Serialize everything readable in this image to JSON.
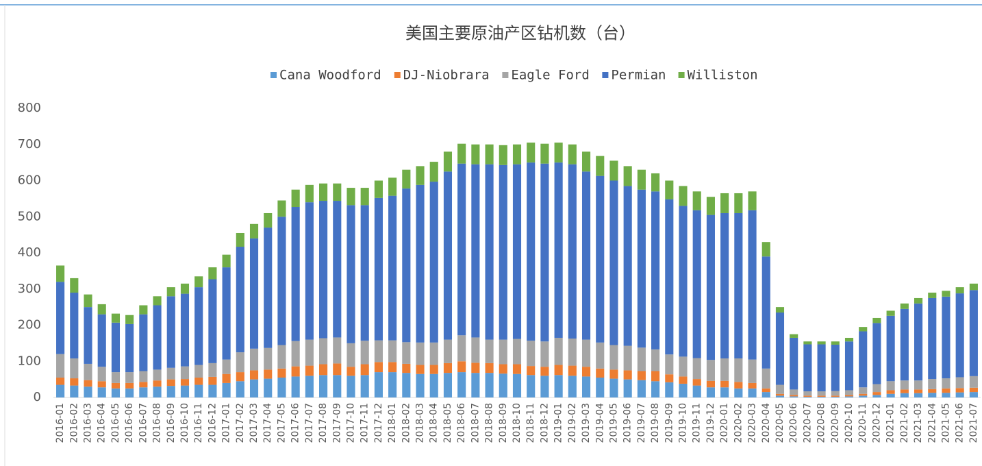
{
  "chart_data": {
    "type": "bar",
    "stacked": true,
    "title": "美国主要原油产区钻机数（台）",
    "categories": [
      "2016-01",
      "2016-02",
      "2016-03",
      "2016-04",
      "2016-05",
      "2016-06",
      "2016-07",
      "2016-08",
      "2016-09",
      "2016-10",
      "2016-11",
      "2016-12",
      "2017-01",
      "2017-02",
      "2017-03",
      "2017-04",
      "2017-05",
      "2017-06",
      "2017-07",
      "2017-08",
      "2017-09",
      "2017-10",
      "2017-11",
      "2017-12",
      "2018-01",
      "2018-02",
      "2018-03",
      "2018-04",
      "2018-05",
      "2018-06",
      "2018-07",
      "2018-08",
      "2018-09",
      "2018-10",
      "2018-11",
      "2018-12",
      "2019-01",
      "2019-02",
      "2019-03",
      "2019-04",
      "2019-05",
      "2019-06",
      "2019-07",
      "2019-08",
      "2019-09",
      "2019-10",
      "2019-11",
      "2019-12",
      "2020-01",
      "2020-02",
      "2020-03",
      "2020-04",
      "2020-05",
      "2020-06",
      "2020-07",
      "2020-08",
      "2020-09",
      "2020-10",
      "2020-11",
      "2020-12",
      "2021-01",
      "2021-02",
      "2021-03",
      "2021-04",
      "2021-05",
      "2021-06",
      "2021-07"
    ],
    "series": [
      {
        "name": "Cana Woodford",
        "color": "#5b9bd5",
        "values": [
          35,
          33,
          30,
          28,
          25,
          25,
          28,
          30,
          32,
          33,
          35,
          35,
          40,
          45,
          50,
          52,
          55,
          58,
          60,
          62,
          62,
          60,
          62,
          70,
          70,
          68,
          65,
          65,
          68,
          70,
          68,
          68,
          66,
          65,
          62,
          60,
          62,
          60,
          58,
          55,
          52,
          50,
          48,
          45,
          42,
          38,
          33,
          28,
          28,
          25,
          25,
          15,
          5,
          3,
          2,
          2,
          2,
          3,
          5,
          7,
          10,
          12,
          12,
          13,
          13,
          14,
          15
        ]
      },
      {
        "name": "DJ-Niobrara",
        "color": "#ed7d31",
        "values": [
          20,
          20,
          18,
          17,
          15,
          15,
          15,
          17,
          18,
          18,
          20,
          22,
          25,
          25,
          25,
          25,
          25,
          28,
          28,
          30,
          32,
          25,
          30,
          28,
          28,
          25,
          25,
          25,
          27,
          30,
          28,
          27,
          26,
          27,
          25,
          25,
          28,
          28,
          27,
          25,
          25,
          25,
          25,
          28,
          22,
          20,
          18,
          18,
          18,
          18,
          15,
          10,
          5,
          4,
          3,
          3,
          3,
          4,
          5,
          8,
          10,
          10,
          10,
          10,
          12,
          12,
          12
        ]
      },
      {
        "name": "Eagle Ford",
        "color": "#a5a5a5",
        "values": [
          65,
          55,
          45,
          40,
          30,
          30,
          30,
          30,
          32,
          35,
          35,
          38,
          40,
          55,
          60,
          60,
          65,
          70,
          72,
          72,
          72,
          65,
          65,
          60,
          60,
          60,
          62,
          62,
          65,
          72,
          70,
          65,
          68,
          70,
          70,
          70,
          75,
          75,
          75,
          72,
          68,
          68,
          65,
          60,
          55,
          55,
          58,
          58,
          62,
          65,
          65,
          55,
          25,
          15,
          12,
          12,
          13,
          13,
          18,
          22,
          25,
          25,
          25,
          28,
          28,
          30,
          32
        ]
      },
      {
        "name": "Permian",
        "color": "#4472c4",
        "values": [
          200,
          182,
          157,
          145,
          137,
          133,
          157,
          178,
          198,
          201,
          215,
          232,
          255,
          292,
          305,
          333,
          355,
          371,
          380,
          380,
          378,
          382,
          375,
          394,
          400,
          425,
          436,
          445,
          465,
          475,
          479,
          485,
          483,
          483,
          493,
          492,
          485,
          482,
          465,
          461,
          455,
          442,
          437,
          437,
          429,
          417,
          409,
          401,
          402,
          402,
          413,
          310,
          200,
          143,
          130,
          130,
          128,
          135,
          155,
          169,
          181,
          198,
          213,
          224,
          226,
          232,
          238
        ]
      },
      {
        "name": "Williston",
        "color": "#70ad47",
        "values": [
          45,
          40,
          35,
          28,
          25,
          25,
          25,
          25,
          25,
          28,
          30,
          33,
          35,
          38,
          40,
          40,
          45,
          48,
          48,
          48,
          48,
          48,
          48,
          48,
          50,
          52,
          52,
          55,
          55,
          55,
          55,
          55,
          55,
          55,
          55,
          55,
          55,
          55,
          55,
          55,
          55,
          55,
          55,
          50,
          52,
          55,
          52,
          50,
          55,
          55,
          52,
          40,
          15,
          10,
          8,
          8,
          9,
          10,
          12,
          14,
          14,
          15,
          15,
          15,
          16,
          17,
          18
        ]
      }
    ],
    "ylim": [
      0,
      800
    ],
    "yticks": [
      0,
      100,
      200,
      300,
      400,
      500,
      600,
      700,
      800
    ],
    "grid": false,
    "legend": "top"
  }
}
